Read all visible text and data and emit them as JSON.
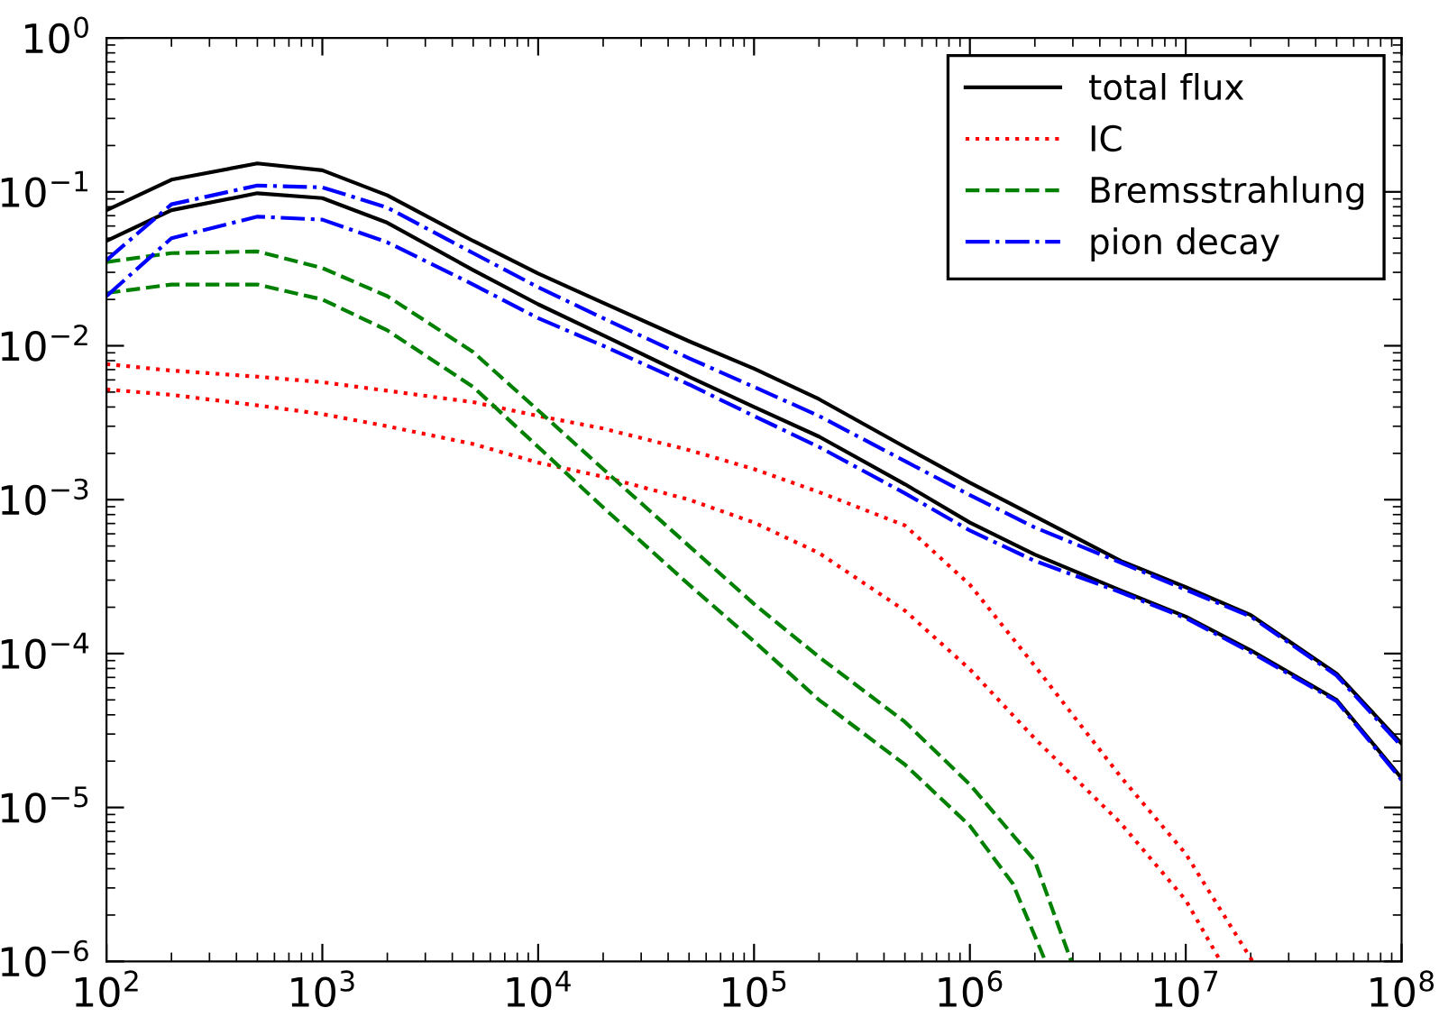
{
  "chart_data": {
    "type": "line",
    "log": "xy",
    "legend": "top right",
    "grid": false,
    "xlim": [
      100,
      100000000
    ],
    "ylim": [
      1e-06,
      1
    ],
    "xticks": [
      {
        "value": 100,
        "label": "10$^{2}$"
      },
      {
        "value": 1000,
        "label": "10$^{3}$"
      },
      {
        "value": 10000,
        "label": "10$^{4}$"
      },
      {
        "value": 100000,
        "label": "10$^{5}$"
      },
      {
        "value": 1000000,
        "label": "10$^{6}$"
      },
      {
        "value": 10000000,
        "label": "10$^{7}$"
      },
      {
        "value": 100000000,
        "label": "10$^{8}$"
      }
    ],
    "yticks": [
      {
        "value": 1e-06,
        "label": "10$^{−6}$"
      },
      {
        "value": 1e-05,
        "label": "10$^{−5}$"
      },
      {
        "value": 0.0001,
        "label": "10$^{−4}$"
      },
      {
        "value": 0.001,
        "label": "10$^{−3}$"
      },
      {
        "value": 0.01,
        "label": "10$^{−2}$"
      },
      {
        "value": 0.1,
        "label": "10$^{−1}$"
      },
      {
        "value": 1,
        "label": "10$^{0}$"
      }
    ],
    "series": [
      {
        "name": "total flux",
        "color": "#000000",
        "line_style": "solid",
        "x": [
          100,
          200,
          500,
          1000,
          2000,
          5000,
          10000,
          20000,
          50000,
          100000,
          200000,
          500000,
          1000000,
          2000000,
          5000000,
          10000000,
          20000000,
          50000000,
          100000000
        ],
        "values": [
          0.076,
          0.12,
          0.153,
          0.138,
          0.095,
          0.048,
          0.0295,
          0.019,
          0.0107,
          0.0071,
          0.0045,
          0.0022,
          0.00129,
          0.00078,
          0.0004,
          0.00027,
          0.000178,
          7.4e-05,
          2.6e-05
        ]
      },
      {
        "color": "#000000",
        "line_style": "solid",
        "x": [
          100,
          200,
          500,
          1000,
          2000,
          5000,
          10000,
          20000,
          50000,
          100000,
          200000,
          500000,
          1000000,
          2000000,
          5000000,
          10000000,
          20000000,
          50000000,
          100000000
        ],
        "values": [
          0.048,
          0.076,
          0.098,
          0.091,
          0.063,
          0.031,
          0.0186,
          0.0117,
          0.0063,
          0.004,
          0.00257,
          0.00126,
          0.00071,
          0.00044,
          0.000257,
          0.000174,
          0.000105,
          5e-05,
          1.55e-05
        ]
      },
      {
        "name": "IC",
        "color": "#ff0000",
        "line_style": "dotted",
        "x": [
          100,
          200,
          500,
          1000,
          2000,
          5000,
          10000,
          20000,
          50000,
          100000,
          200000,
          500000,
          1000000,
          2000000,
          5000000,
          10000000,
          20400000
        ],
        "values": [
          0.0076,
          0.0069,
          0.0063,
          0.0058,
          0.0051,
          0.0043,
          0.0035,
          0.0029,
          0.0021,
          0.00158,
          0.00112,
          0.00068,
          0.00028,
          8.3e-05,
          1.58e-05,
          5e-06,
          1e-06
        ]
      },
      {
        "color": "#ff0000",
        "line_style": "dotted",
        "x": [
          100,
          200,
          500,
          1000,
          2000,
          5000,
          10000,
          20000,
          50000,
          100000,
          200000,
          500000,
          1000000,
          2000000,
          5000000,
          10000000,
          14500000
        ],
        "values": [
          0.0052,
          0.0048,
          0.0041,
          0.0036,
          0.003,
          0.0023,
          0.00174,
          0.00141,
          0.001,
          0.00071,
          0.00045,
          0.00019,
          7.9e-05,
          2.8e-05,
          7.9e-06,
          2.5e-06,
          1e-06
        ]
      },
      {
        "name": "Bremsstrahlung",
        "color": "#008000",
        "line_style": "dashed",
        "x": [
          100,
          200,
          500,
          1000,
          2000,
          5000,
          10000,
          20000,
          50000,
          100000,
          200000,
          500000,
          1000000,
          2000000,
          2950000
        ],
        "values": [
          0.035,
          0.04,
          0.041,
          0.032,
          0.021,
          0.0091,
          0.0038,
          0.00158,
          0.0005,
          0.00021,
          9.5e-05,
          3.6e-05,
          1.41e-05,
          4.5e-06,
          1e-06
        ]
      },
      {
        "color": "#008000",
        "line_style": "dashed",
        "x": [
          100,
          200,
          500,
          1000,
          2000,
          5000,
          10000,
          20000,
          50000,
          100000,
          200000,
          500000,
          1000000,
          1580000,
          2240000
        ],
        "values": [
          0.022,
          0.025,
          0.025,
          0.02,
          0.0126,
          0.0054,
          0.0022,
          0.00089,
          0.00028,
          0.00012,
          5e-05,
          1.9e-05,
          7.6e-06,
          3.2e-06,
          1e-06
        ]
      },
      {
        "name": "pion decay",
        "color": "#0000ff",
        "line_style": "dashdot",
        "x": [
          100,
          200,
          500,
          1000,
          2000,
          5000,
          10000,
          20000,
          50000,
          100000,
          200000,
          500000,
          1000000,
          2000000,
          5000000,
          10000000,
          20000000,
          50000000,
          100000000
        ],
        "values": [
          0.036,
          0.083,
          0.11,
          0.107,
          0.079,
          0.04,
          0.024,
          0.0151,
          0.0083,
          0.0054,
          0.0035,
          0.00178,
          0.00107,
          0.00066,
          0.00039,
          0.00026,
          0.000174,
          7.2e-05,
          2.5e-05
        ]
      },
      {
        "color": "#0000ff",
        "line_style": "dashdot",
        "x": [
          100,
          200,
          500,
          1000,
          2000,
          5000,
          10000,
          20000,
          50000,
          100000,
          200000,
          500000,
          1000000,
          2000000,
          5000000,
          10000000,
          20000000,
          50000000,
          100000000
        ],
        "values": [
          0.021,
          0.05,
          0.069,
          0.066,
          0.047,
          0.025,
          0.0151,
          0.01,
          0.0056,
          0.0035,
          0.0022,
          0.0011,
          0.00063,
          0.0004,
          0.00025,
          0.00017,
          0.000102,
          4.9e-05,
          1.51e-05
        ]
      }
    ]
  }
}
